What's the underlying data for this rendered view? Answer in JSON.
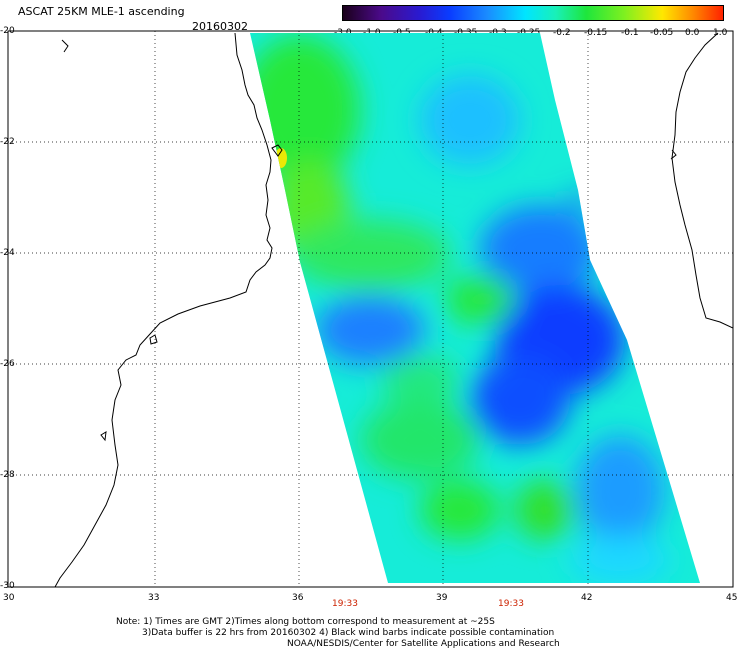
{
  "header": {
    "title": "ASCAT 25KM MLE-1 ascending",
    "date": "20160302"
  },
  "colorbar": {
    "ticks": [
      "-3.0",
      "-1.0",
      "-0.5",
      "-0.4",
      "-0.35",
      "-0.3",
      "-0.25",
      "-0.2",
      "-0.15",
      "-0.1",
      "-0.05",
      "0.0",
      "1.0"
    ],
    "colors": [
      "#1a001a",
      "#4b0a8a",
      "#2a1ad0",
      "#0a3cff",
      "#1a8cff",
      "#00e5ff",
      "#19f0b8",
      "#1ee63c",
      "#7ef020",
      "#ffe800",
      "#ff8a00",
      "#ff2200"
    ]
  },
  "map": {
    "lat_labels": [
      "-20",
      "-22",
      "-24",
      "-26",
      "-28",
      "-30"
    ],
    "lon_labels": [
      "30",
      "33",
      "36",
      "39",
      "42",
      "45"
    ],
    "time_labels": [
      "19:33",
      "19:33"
    ],
    "land_color": "#ffffff",
    "coast_color": "#000000"
  },
  "notes": {
    "line1": "Note: 1) Times are GMT 2)Times along bottom correspond to measurement at ~25S",
    "line2": "3)Data buffer is 22 hrs from 20160302 4) Black wind barbs indicate possible contamination",
    "line3": "NOAA/NESDIS/Center for Satellite Applications and Research"
  }
}
